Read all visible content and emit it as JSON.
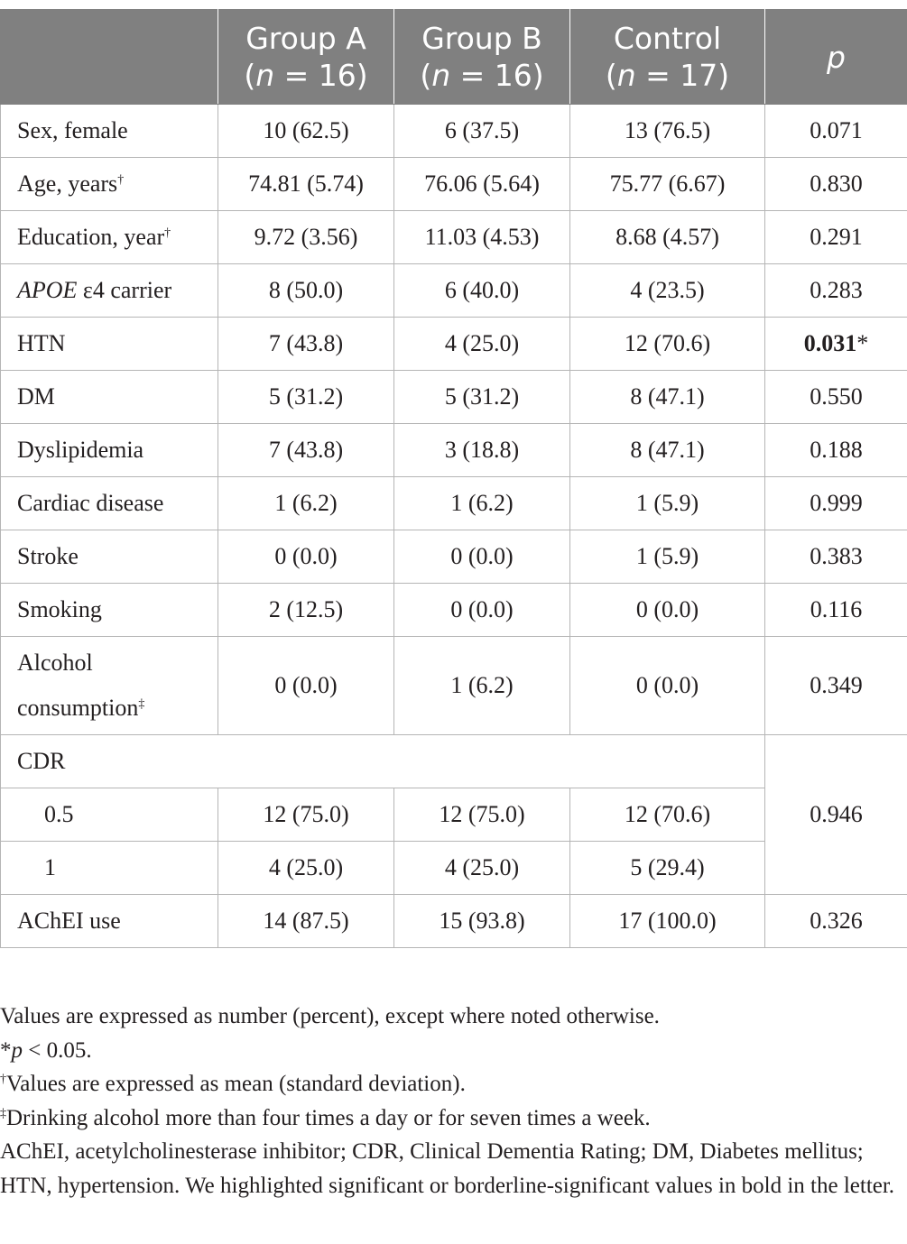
{
  "table": {
    "columns": [
      {
        "label": "Group A",
        "n": [
          "(",
          "n",
          " = 16)"
        ]
      },
      {
        "label": "Group B",
        "n": [
          "(",
          "n",
          " = 16)"
        ]
      },
      {
        "label": "Control",
        "n": [
          "(",
          "n",
          " = 17)"
        ]
      },
      {
        "label": "p"
      }
    ],
    "rows": [
      {
        "label": "Sex, female",
        "cells": [
          "10 (62.5)",
          "6 (37.5)",
          "13 (76.5)"
        ],
        "p": "0.071"
      },
      {
        "label": "Age, years",
        "sup": "†",
        "cells": [
          "74.81 (5.74)",
          "76.06 (5.64)",
          "75.77 (6.67)"
        ],
        "p": "0.830"
      },
      {
        "label": "Education, year",
        "sup": "†",
        "cells": [
          "9.72 (3.56)",
          "11.03 (4.53)",
          "8.68 (4.57)"
        ],
        "p": "0.291"
      },
      {
        "italic_label": "APOE",
        "label": " ε4 carrier",
        "cells": [
          "8 (50.0)",
          "6 (40.0)",
          "4 (23.5)"
        ],
        "p": "0.283"
      },
      {
        "label": "HTN",
        "cells": [
          "7 (43.8)",
          "4 (25.0)",
          "12 (70.6)"
        ],
        "p": "0.031",
        "p_bold": true,
        "p_note": "*"
      },
      {
        "label": "DM",
        "cells": [
          "5 (31.2)",
          "5 (31.2)",
          "8 (47.1)"
        ],
        "p": "0.550"
      },
      {
        "label": "Dyslipidemia",
        "cells": [
          "7 (43.8)",
          "3 (18.8)",
          "8 (47.1)"
        ],
        "p": "0.188"
      },
      {
        "label": "Cardiac disease",
        "cells": [
          "1 (6.2)",
          "1 (6.2)",
          "1 (5.9)"
        ],
        "p": "0.999"
      },
      {
        "label": "Stroke",
        "cells": [
          "0 (0.0)",
          "0 (0.0)",
          "1 (5.9)"
        ],
        "p": "0.383"
      },
      {
        "label": "Smoking",
        "cells": [
          "2 (12.5)",
          "0 (0.0)",
          "0 (0.0)"
        ],
        "p": "0.116"
      },
      {
        "label": "Alcohol consumption",
        "sup": "‡",
        "cells": [
          "0 (0.0)",
          "1 (6.2)",
          "0 (0.0)"
        ],
        "p": "0.349"
      },
      {
        "label": "CDR",
        "levels": [
          {
            "label": "0.5",
            "cells": [
              "12 (75.0)",
              "12 (75.0)",
              "12 (70.6)"
            ]
          },
          {
            "label": "1",
            "cells": [
              "4 (25.0)",
              "4 (25.0)",
              "5 (29.4)"
            ]
          }
        ],
        "p": "0.946"
      },
      {
        "label": "AChEI use",
        "cells": [
          "14 (87.5)",
          "15 (93.8)",
          "17 (100.0)"
        ],
        "p": "0.326"
      }
    ],
    "footnotes": [
      {
        "text": "Values are expressed as number (percent), except where noted otherwise."
      },
      {
        "mark": "*",
        "italic": "p",
        "text": " < 0.05."
      },
      {
        "sup": "†",
        "text": "Values are expressed as mean (standard deviation)."
      },
      {
        "sup": "‡",
        "text": "Drinking alcohol more than four times a day or for seven times a week."
      },
      {
        "text": "AChEI, acetylcholinesterase inhibitor; CDR, Clinical Dementia Rating; DM, Diabetes mellitus; HTN, hypertension. We highlighted significant or borderline-significant values in bold in the letter."
      }
    ]
  }
}
